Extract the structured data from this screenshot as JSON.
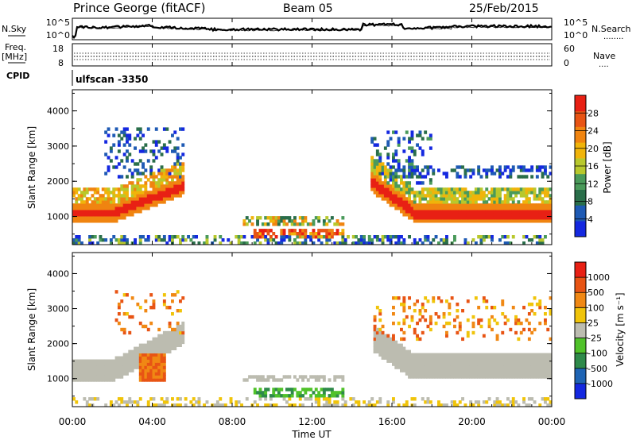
{
  "header": {
    "station": "Prince George (fitACF)",
    "beam": "Beam 05",
    "date": "25/Feb/2015"
  },
  "top_panels": {
    "nsky_label": "N.Sky",
    "nsearch_label": "N.Search",
    "nsearch_dots": "........",
    "noise_ticks": [
      "10^5",
      "10^0"
    ],
    "freq_label": "Freq.",
    "freq_unit": "[MHz]",
    "freq_ticks": [
      "18",
      "8"
    ],
    "nave_label": "Nave",
    "nave_dots": "....",
    "nave_ticks": [
      "60",
      "0"
    ],
    "cpid_label": "CPID",
    "cpid_value": "ulfscan -3350"
  },
  "colors": {
    "power_scale": [
      "#1428e0",
      "#1e5ab4",
      "#2a6e4a",
      "#4a9a5a",
      "#b8c82c",
      "#f0b40a",
      "#f08410",
      "#e85414",
      "#e82014"
    ],
    "velocity_scale": [
      "#1428e0",
      "#1e64b4",
      "#2e8a4a",
      "#50c22a",
      "#bcbcb0",
      "#f0c40a",
      "#f08814",
      "#e85414",
      "#e82014"
    ]
  },
  "chart_data": [
    {
      "type": "heatmap",
      "name": "power",
      "ylabel": "Slant Range [km]",
      "yticks": [
        "4000",
        "3000",
        "2000",
        "1000"
      ],
      "ylim": [
        200,
        4600
      ],
      "xlim": [
        "00:00",
        "24:00"
      ],
      "colorbar_label": "Power [dB]",
      "colorbar_ticks": [
        "28",
        "24",
        "20",
        "16",
        "12",
        "8",
        "4"
      ],
      "colorbar_range": [
        0,
        32
      ]
    },
    {
      "type": "heatmap",
      "name": "velocity",
      "ylabel": "Slant Range [km]",
      "yticks": [
        "4000",
        "3000",
        "2000",
        "1000"
      ],
      "ylim": [
        200,
        4600
      ],
      "xlim": [
        "00:00",
        "24:00"
      ],
      "colorbar_label": "Velocity [m s⁻¹]",
      "colorbar_ticks": [
        "1000",
        "500",
        "100",
        "25",
        "-25",
        "-100",
        "-500",
        "-1000"
      ]
    }
  ],
  "x_axis": {
    "ticks": [
      "00:00",
      "04:00",
      "08:00",
      "12:00",
      "16:00",
      "20:00",
      "00:00"
    ],
    "label": "Time UT"
  }
}
